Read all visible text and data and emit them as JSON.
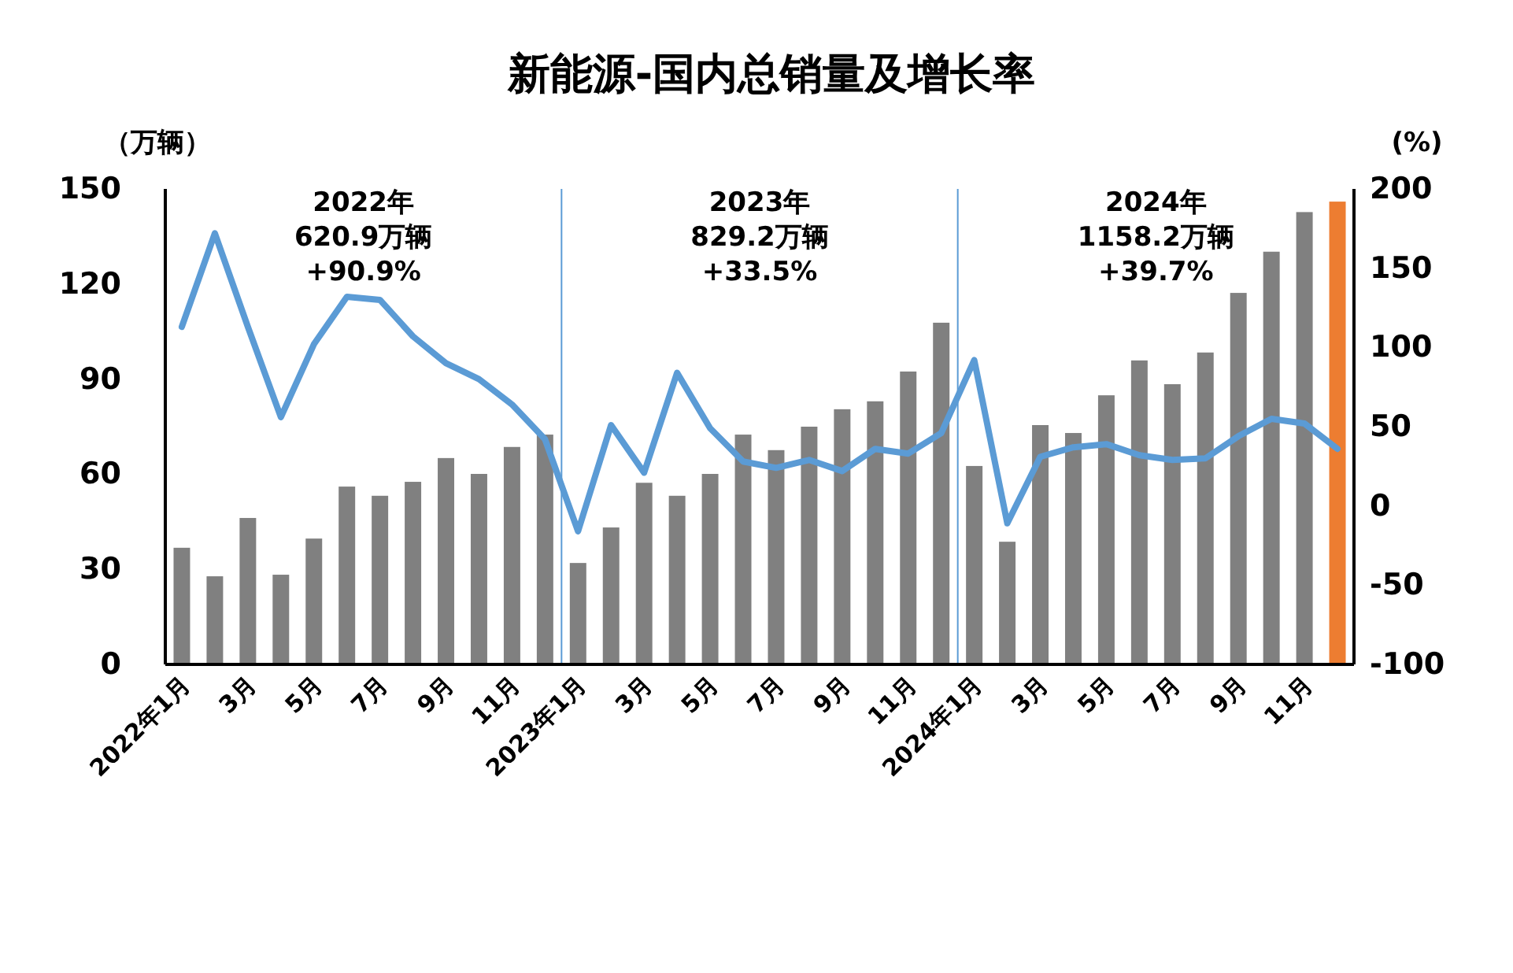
{
  "chart_data": {
    "type": "bar",
    "title": "新能源-国内总销量及增长率",
    "ylabel": "（万辆）",
    "y2label": "(%)",
    "categories": [
      "2022年1月",
      null,
      "3月",
      null,
      "5月",
      null,
      "7月",
      null,
      "9月",
      null,
      "11月",
      null,
      "2023年1月",
      null,
      "3月",
      null,
      "5月",
      null,
      "7月",
      null,
      "9月",
      null,
      "11月",
      null,
      "2024年1月",
      null,
      "3月",
      null,
      "5月",
      null,
      "7月",
      null,
      "9月",
      null,
      "11月",
      null
    ],
    "series": [
      {
        "colors": [
          "#808080",
          "#808080",
          "#808080",
          "#808080",
          "#808080",
          "#808080",
          "#808080",
          "#808080",
          "#808080",
          "#808080",
          "#808080",
          "#808080",
          "#808080",
          "#808080",
          "#808080",
          "#808080",
          "#808080",
          "#808080",
          "#808080",
          "#808080",
          "#808080",
          "#808080",
          "#808080",
          "#808080",
          "#808080",
          "#808080",
          "#808080",
          "#808080",
          "#808080",
          "#808080",
          "#808080",
          "#808080",
          "#808080",
          "#808080",
          "#808080",
          "#ed7d31"
        ],
        "values": [
          36.8,
          27.8,
          46.2,
          28.3,
          39.7,
          56.1,
          53.2,
          57.6,
          65.1,
          60.1,
          68.6,
          72.5,
          32.0,
          43.2,
          57.3,
          53.2,
          60.1,
          72.5,
          67.6,
          75.0,
          80.5,
          83.0,
          92.4,
          107.8,
          62.6,
          38.7,
          75.5,
          73.0,
          84.9,
          95.9,
          88.4,
          98.4,
          117.2,
          130.2,
          142.7,
          146.0
        ]
      },
      {
        "type": "line",
        "axis": "y2",
        "color": "#5b9bd5",
        "values": [
          113,
          172,
          113,
          56,
          102,
          132,
          130,
          107,
          90,
          80,
          64,
          42,
          -16,
          51,
          21,
          84,
          49,
          28,
          24,
          29,
          22,
          36,
          33,
          46,
          92,
          -11,
          31,
          37,
          39,
          32,
          29,
          30,
          44,
          55,
          52,
          36
        ]
      }
    ],
    "ylim": [
      0,
      150
    ],
    "yticks": [
      0,
      30,
      60,
      90,
      120,
      150
    ],
    "y2lim": [
      -100,
      200
    ],
    "y2ticks": [
      -100,
      -50,
      0,
      50,
      100,
      150,
      200
    ],
    "annotations": [
      "2022年\n620.9万辆\n+90.9%",
      "2023年\n829.2万辆\n+33.5%",
      "2024年\n1158.2万辆\n+39.7%"
    ],
    "grid": false,
    "marker": "none",
    "line_style": "solid"
  }
}
